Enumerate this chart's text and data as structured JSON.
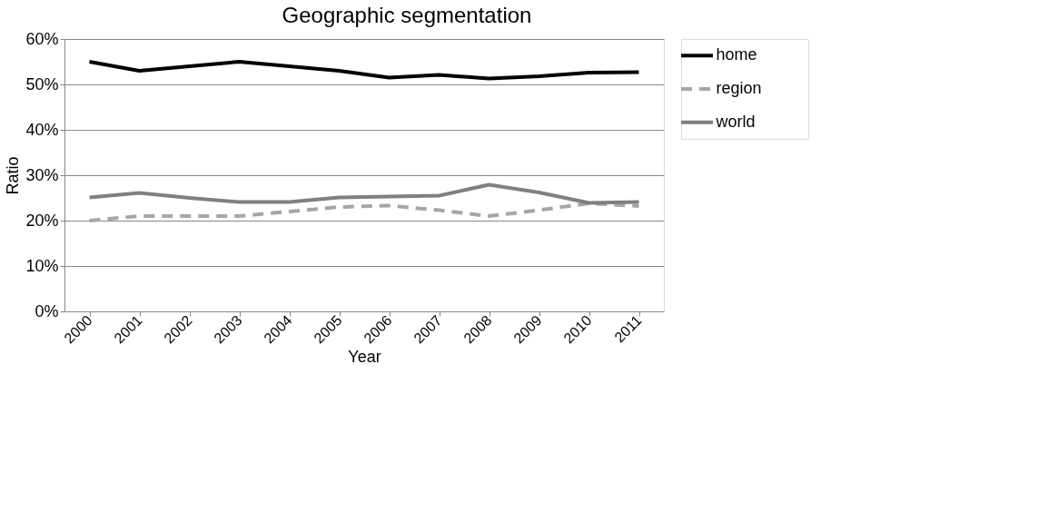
{
  "chart_data": {
    "type": "line",
    "title": "Geographic segmentation",
    "xlabel": "Year",
    "ylabel": "Ratio",
    "categories": [
      "2000",
      "2001",
      "2002",
      "2003",
      "2004",
      "2005",
      "2006",
      "2007",
      "2008",
      "2009",
      "2010",
      "2011"
    ],
    "series": [
      {
        "name": "home",
        "color": "#000000",
        "line_style": "solid",
        "values": [
          55,
          53,
          54,
          55,
          54,
          53,
          51.5,
          52.1,
          51.3,
          51.8,
          52.6,
          52.7
        ]
      },
      {
        "name": "region",
        "color": "#a6a6a6",
        "line_style": "dashed",
        "values": [
          20,
          21,
          21,
          21,
          22,
          23,
          23.3,
          22.3,
          21,
          22.3,
          23.8,
          23.2
        ]
      },
      {
        "name": "world",
        "color": "#808080",
        "line_style": "solid",
        "values": [
          25.1,
          26.1,
          25,
          24.1,
          24.1,
          25.1,
          25.3,
          25.5,
          27.9,
          26.2,
          23.9,
          24.1
        ]
      }
    ],
    "ylim": [
      0,
      60
    ],
    "yticks": [
      {
        "value": 0,
        "label": "0%"
      },
      {
        "value": 10,
        "label": "10%"
      },
      {
        "value": 20,
        "label": "20%"
      },
      {
        "value": 30,
        "label": "30%"
      },
      {
        "value": 40,
        "label": "40%"
      },
      {
        "value": 50,
        "label": "50%"
      },
      {
        "value": 60,
        "label": "60%"
      }
    ],
    "grid": "y",
    "legend": "right"
  }
}
